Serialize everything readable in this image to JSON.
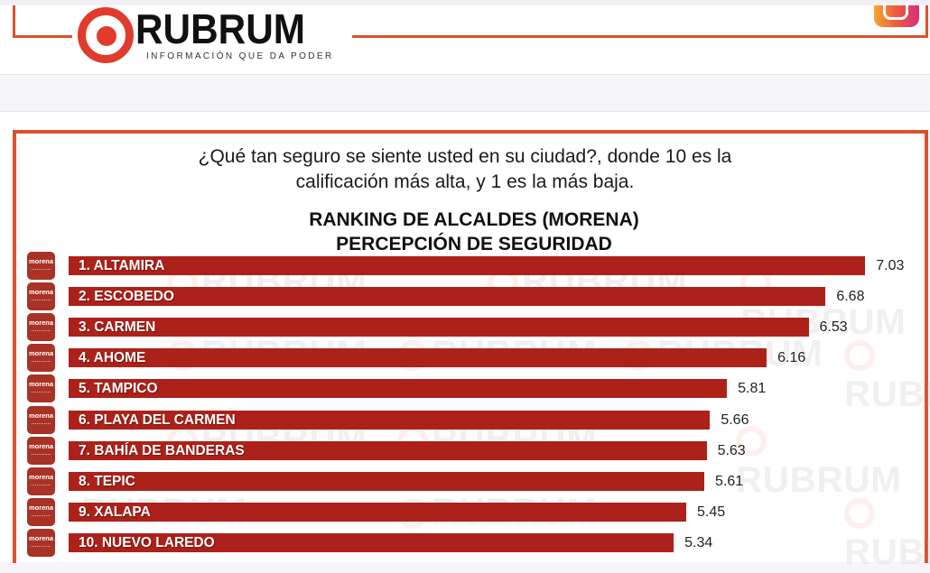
{
  "header": {
    "logo_text": "RUBRUM",
    "logo_tagline": "INFORMACIÓN QUE DA PODER",
    "social_icon": "instagram-icon",
    "accent_color": "#d9522f"
  },
  "card": {
    "question_line1": "¿Qué tan seguro se siente usted en su ciudad?, donde 10 es la",
    "question_line2": "calificación más alta, y  1 es la más baja.",
    "title_line1": "RANKING DE ALCALDES  (MORENA)",
    "title_line2": "PERCEPCIÓN DE SEGURIDAD",
    "badge_text": "morena",
    "bar_color": "#ac2119",
    "watermark_text": "RUBRUM"
  },
  "chart_data": {
    "type": "bar",
    "orientation": "horizontal",
    "title": "RANKING DE ALCALDES (MORENA) PERCEPCIÓN DE SEGURIDAD",
    "subtitle": "¿Qué tan seguro se siente usted en su ciudad?, donde 10 es la calificación más alta, y 1 es la más baja.",
    "xlabel": "",
    "ylabel": "",
    "grid": false,
    "legend": "none",
    "categories": [
      "1. ALTAMIRA",
      "2. ESCOBEDO",
      "3. CARMEN",
      "4. AHOME",
      "5. TAMPICO",
      "6. PLAYA DEL CARMEN",
      "7. BAHÍA DE BANDERAS",
      "8. TEPIC",
      "9. XALAPA",
      "10. NUEVO LAREDO"
    ],
    "values": [
      7.03,
      6.68,
      6.53,
      6.16,
      5.81,
      5.66,
      5.63,
      5.61,
      5.45,
      5.34
    ],
    "value_labels": [
      "7.03",
      "6.68",
      "6.53",
      "6.16",
      "5.81",
      "5.66",
      "5.63",
      "5.61",
      "5.45",
      "5.34"
    ]
  }
}
